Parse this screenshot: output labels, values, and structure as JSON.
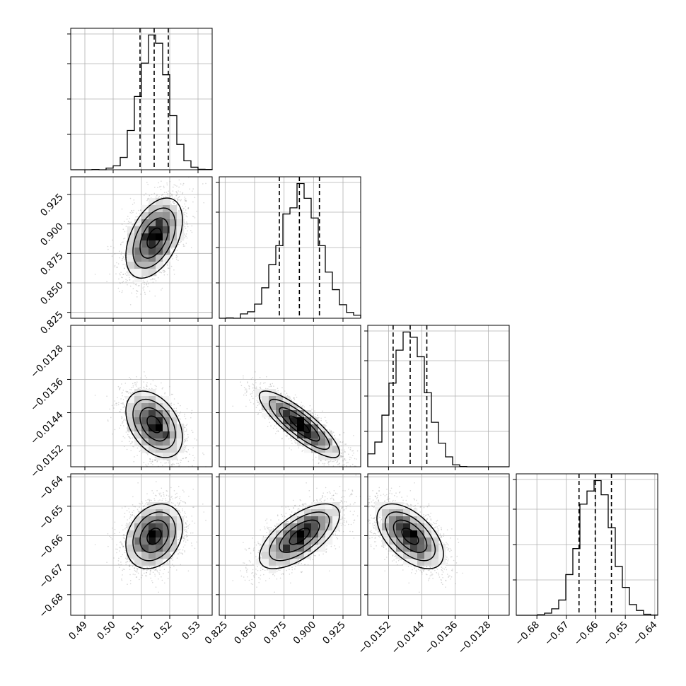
{
  "chart_data": {
    "type": "corner",
    "title": "",
    "params": [
      {
        "mean": 0.5145,
        "sigma": 0.005,
        "range": [
          0.485,
          0.535
        ],
        "ticks": [
          0.49,
          0.5,
          0.51,
          0.52,
          0.53
        ],
        "tick_labels": [
          "0.49",
          "0.50",
          "0.51",
          "0.52",
          "0.53"
        ],
        "quantiles": [
          0.5095,
          0.5145,
          0.5195
        ]
      },
      {
        "mean": 0.888,
        "sigma": 0.017,
        "range": [
          0.82,
          0.94
        ],
        "ticks": [
          0.825,
          0.85,
          0.875,
          0.9,
          0.925
        ],
        "tick_labels": [
          "0.825",
          "0.850",
          "0.875",
          "0.900",
          "0.925"
        ],
        "quantiles": [
          0.871,
          0.888,
          0.905
        ]
      },
      {
        "mean": -0.01468,
        "sigma": 0.0004,
        "range": [
          -0.0157,
          -0.0123
        ],
        "ticks": [
          -0.0152,
          -0.0144,
          -0.0136,
          -0.0128
        ],
        "tick_labels": [
          "−0.0152",
          "−0.0144",
          "−0.0136",
          "−0.0128"
        ],
        "quantiles": [
          -0.01509,
          -0.01468,
          -0.01428
        ]
      },
      {
        "mean": -0.6602,
        "sigma": 0.0055,
        "range": [
          -0.687,
          -0.639
        ],
        "ticks": [
          -0.68,
          -0.67,
          -0.66,
          -0.65,
          -0.64
        ],
        "tick_labels": [
          "−0.68",
          "−0.67",
          "−0.66",
          "−0.65",
          "−0.64"
        ],
        "quantiles": [
          -0.6657,
          -0.6602,
          -0.6547
        ]
      }
    ],
    "correlations": [
      [
        1,
        0.45,
        -0.4,
        0.25
      ],
      [
        0.45,
        1,
        -0.85,
        0.65
      ],
      [
        -0.4,
        -0.85,
        1,
        -0.55
      ],
      [
        0.25,
        0.65,
        -0.55,
        1
      ]
    ],
    "histogram_bins": 20,
    "contour_levels": [
      0.5,
      1.0,
      1.5,
      2.0
    ],
    "grid": true,
    "colors": {
      "ink": "#000000",
      "grid": "#b0b0b0",
      "points": "#8c8c8c"
    }
  }
}
